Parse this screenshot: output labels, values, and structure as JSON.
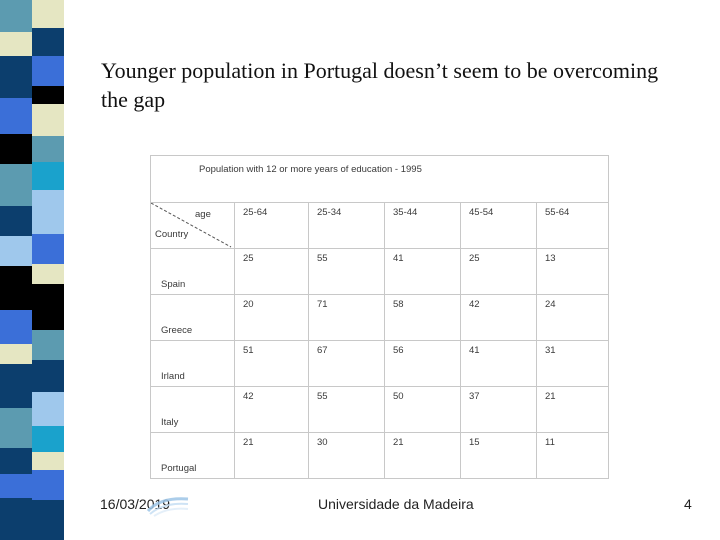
{
  "slide": {
    "title": "Younger population in Portugal doesn’t seem to be overcoming the gap"
  },
  "table": {
    "caption": "Population with 12 or more years of education - 1995",
    "header_age": "age",
    "header_country": "Country",
    "columns": [
      "25-64",
      "25-34",
      "35-44",
      "45-54",
      "55-64"
    ],
    "rows": [
      {
        "country": "Spain",
        "values": [
          "25",
          "55",
          "41",
          "25",
          "13"
        ]
      },
      {
        "country": "Greece",
        "values": [
          "20",
          "71",
          "58",
          "42",
          "24"
        ]
      },
      {
        "country": "Irland",
        "values": [
          "51",
          "67",
          "56",
          "41",
          "31"
        ]
      },
      {
        "country": "Italy",
        "values": [
          "42",
          "55",
          "50",
          "37",
          "21"
        ]
      },
      {
        "country": "Portugal",
        "values": [
          "21",
          "30",
          "21",
          "15",
          "11"
        ]
      }
    ]
  },
  "footer": {
    "date": "16/03/2019",
    "center": "Universidade da Madeira",
    "page": "4"
  },
  "colors": {
    "strip_dark": "#0c3e6d",
    "strip_teal": "#5c9bb0",
    "strip_blue": "#3b6fd8",
    "strip_light": "#9fc8ec",
    "strip_cream": "#e5e6c2",
    "strip_black": "#000000",
    "strip_cyan": "#1aa2cc"
  }
}
